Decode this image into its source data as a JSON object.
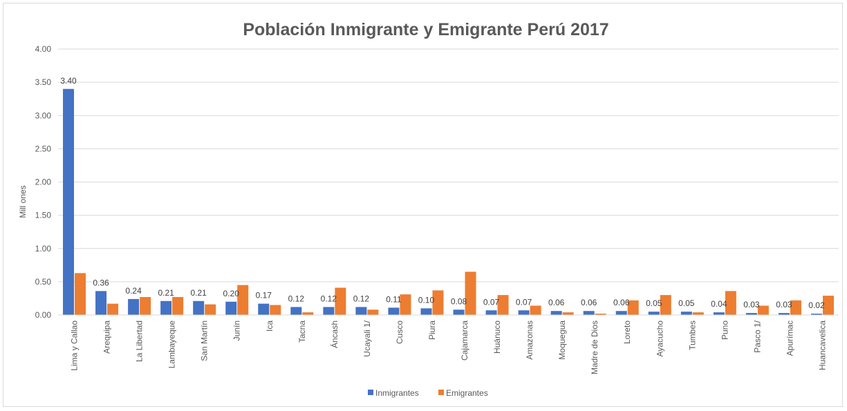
{
  "chart_data": {
    "type": "bar",
    "title": "Población Inmigrante y Emigrante Perú 2017",
    "xlabel": "",
    "ylabel": "Mill ones",
    "ylim": [
      0,
      4
    ],
    "yticks": [
      "0.00",
      "0.50",
      "1.00",
      "1.50",
      "2.00",
      "2.50",
      "3.00",
      "3.50",
      "4.00"
    ],
    "grid": "horizontal",
    "legend_position": "bottom",
    "categories": [
      "Lima y Callao",
      "Arequipa",
      "La Libertad",
      "Lambayeque",
      "San Martín",
      "Junín",
      "Ica",
      "Tacna",
      "Áncash",
      "Ucayali 1/",
      "Cusco",
      "Piura",
      "Cajamarca",
      "Huánuco",
      "Amazonas",
      "Moquegua",
      "Madre de Dios",
      "Loreto",
      "Ayacucho",
      "Tumbes",
      "Puno",
      "Pasco 1/",
      "Apurímac",
      "Huancavelica"
    ],
    "series": [
      {
        "name": "Inmigrantes",
        "color": "#4472c4",
        "values": [
          3.4,
          0.36,
          0.24,
          0.21,
          0.21,
          0.2,
          0.17,
          0.12,
          0.12,
          0.12,
          0.11,
          0.1,
          0.08,
          0.07,
          0.07,
          0.06,
          0.06,
          0.06,
          0.05,
          0.05,
          0.04,
          0.03,
          0.03,
          0.02
        ],
        "data_labels": [
          "3.40",
          "0.36",
          "0.24",
          "0.21",
          "0.21",
          "0.20",
          "0.17",
          "0.12",
          "0.12",
          "0.12",
          "0.11",
          "0.10",
          "0.08",
          "0.07",
          "0.07",
          "0.06",
          "0.06",
          "0.06",
          "0.05",
          "0.05",
          "0.04",
          "0.03",
          "0.03",
          "0.02"
        ]
      },
      {
        "name": "Emigrantes",
        "color": "#ed7d31",
        "values": [
          0.63,
          0.17,
          0.27,
          0.27,
          0.16,
          0.45,
          0.15,
          0.04,
          0.41,
          0.08,
          0.31,
          0.37,
          0.65,
          0.3,
          0.14,
          0.04,
          0.02,
          0.22,
          0.3,
          0.04,
          0.36,
          0.14,
          0.22,
          0.29
        ]
      }
    ]
  }
}
